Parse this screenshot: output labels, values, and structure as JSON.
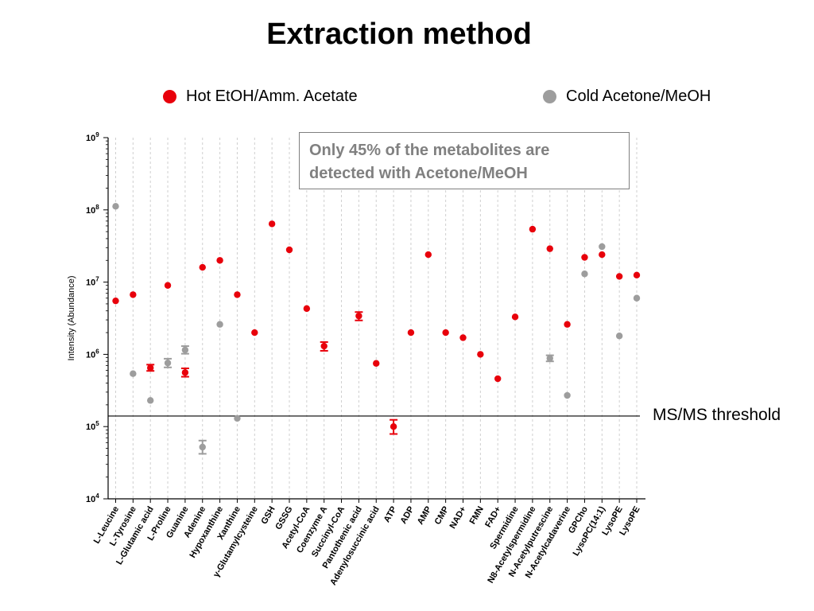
{
  "title": "Extraction method",
  "note": "Only 45% of the metabolites are detected with Acetone/MeOH",
  "threshold_label": "MS/MS threshold",
  "colors": {
    "hot": "#e8000b",
    "cold": "#9d9d9d"
  },
  "chart_data": {
    "type": "scatter",
    "title": "Extraction method",
    "ylabel": "Intensity (Abundance)",
    "yscale": "log",
    "ylim": [
      10000,
      1000000000
    ],
    "yticks": [
      {
        "value": 1000000000,
        "base": "10",
        "exp": "9"
      },
      {
        "value": 100000000,
        "base": "10",
        "exp": "8"
      },
      {
        "value": 10000000,
        "base": "10",
        "exp": "7"
      },
      {
        "value": 1000000,
        "base": "10",
        "exp": "6"
      },
      {
        "value": 100000,
        "base": "10",
        "exp": "5"
      },
      {
        "value": 10000,
        "base": "10",
        "exp": "4"
      }
    ],
    "threshold": 140000,
    "legend_position": "top",
    "categories": [
      "L-Leucine",
      "L-Tyrosine",
      "L-Glutamic acid",
      "L-Proline",
      "Guanine",
      "Adenine",
      "Hypoxanthine",
      "Xanthine",
      "γ-Glutamylcysteine",
      "GSH",
      "GSSG",
      "Acetyl-CoA",
      "Coenzyme A",
      "Succinyl-CoA",
      "Pantothenic acid",
      "Adenylosuccinic acid",
      "ATP",
      "ADP",
      "AMP",
      "CMP",
      "NAD+",
      "FMN",
      "FAD+",
      "Spermidine",
      "N8-Acetylspermidine",
      "N-Acetylputrescine",
      "N-Acetylcadaverine",
      "GPCho",
      "LysoPC(14:1)",
      "LysoPE",
      "LysoPE"
    ],
    "series": [
      {
        "name": "Hot EtOH/Amm. Acetate",
        "color": "#e8000b",
        "points": [
          {
            "i": 0,
            "y": 5500000
          },
          {
            "i": 1,
            "y": 6700000
          },
          {
            "i": 2,
            "y": 650000,
            "err": [
              590000,
              720000
            ]
          },
          {
            "i": 3,
            "y": 9000000
          },
          {
            "i": 4,
            "y": 560000,
            "err": [
              490000,
              640000
            ]
          },
          {
            "i": 5,
            "y": 16000000
          },
          {
            "i": 6,
            "y": 20000000
          },
          {
            "i": 7,
            "y": 6700000
          },
          {
            "i": 8,
            "y": 2000000
          },
          {
            "i": 9,
            "y": 64000000
          },
          {
            "i": 10,
            "y": 28000000
          },
          {
            "i": 11,
            "y": 4300000
          },
          {
            "i": 12,
            "y": 1300000,
            "err": [
              1120000,
              1480000
            ]
          },
          {
            "i": 14,
            "y": 3400000,
            "err": [
              2950000,
              3850000
            ]
          },
          {
            "i": 15,
            "y": 750000
          },
          {
            "i": 16,
            "y": 100000,
            "err": [
              79000,
              124000
            ]
          },
          {
            "i": 17,
            "y": 2000000
          },
          {
            "i": 18,
            "y": 24000000
          },
          {
            "i": 19,
            "y": 2000000
          },
          {
            "i": 20,
            "y": 1700000
          },
          {
            "i": 21,
            "y": 1000000
          },
          {
            "i": 22,
            "y": 460000
          },
          {
            "i": 23,
            "y": 3300000
          },
          {
            "i": 24,
            "y": 54000000
          },
          {
            "i": 25,
            "y": 29000000
          },
          {
            "i": 26,
            "y": 2600000
          },
          {
            "i": 27,
            "y": 22000000
          },
          {
            "i": 28,
            "y": 24000000
          },
          {
            "i": 29,
            "y": 12000000
          },
          {
            "i": 30,
            "y": 12500000
          }
        ]
      },
      {
        "name": "Cold Acetone/MeOH",
        "color": "#9d9d9d",
        "points": [
          {
            "i": 0,
            "y": 112000000
          },
          {
            "i": 1,
            "y": 540000
          },
          {
            "i": 2,
            "y": 230000
          },
          {
            "i": 3,
            "y": 760000,
            "err": [
              660000,
              870000
            ]
          },
          {
            "i": 4,
            "y": 1150000,
            "err": [
              1020000,
              1300000
            ]
          },
          {
            "i": 5,
            "y": 52000,
            "err": [
              42000,
              64000
            ]
          },
          {
            "i": 6,
            "y": 2600000
          },
          {
            "i": 7,
            "y": 130000
          },
          {
            "i": 25,
            "y": 880000,
            "err": [
              800000,
              970000
            ]
          },
          {
            "i": 26,
            "y": 270000
          },
          {
            "i": 27,
            "y": 13000000
          },
          {
            "i": 28,
            "y": 31000000
          },
          {
            "i": 29,
            "y": 1800000
          },
          {
            "i": 30,
            "y": 6000000
          }
        ]
      }
    ]
  }
}
